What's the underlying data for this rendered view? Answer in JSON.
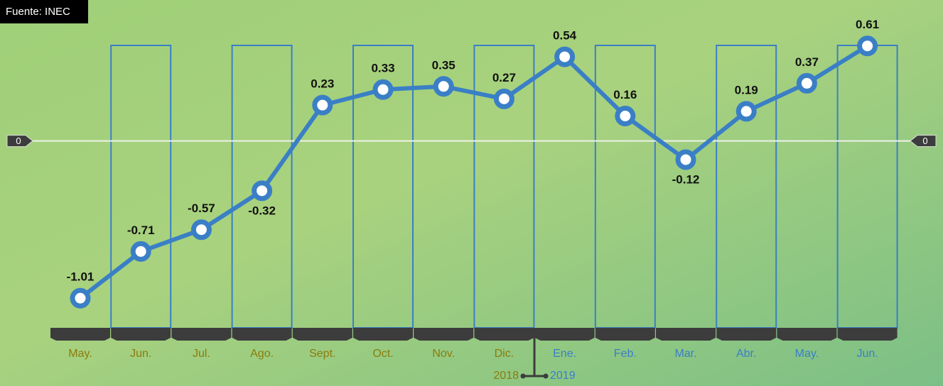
{
  "source": "Fuente: INEC",
  "chart_data": {
    "type": "line",
    "categories": [
      "May.",
      "Jun.",
      "Jul.",
      "Ago.",
      "Sept.",
      "Oct.",
      "Nov.",
      "Dic.",
      "Ene.",
      "Feb.",
      "Mar.",
      "Abr.",
      "May.",
      "Jun."
    ],
    "series": [
      {
        "color": "#3a7fc6",
        "values": [
          -1.01,
          -0.71,
          -0.57,
          -0.32,
          0.23,
          0.33,
          0.35,
          0.27,
          0.54,
          0.16,
          -0.12,
          0.19,
          0.37,
          0.61
        ]
      }
    ],
    "year_groups": [
      {
        "label": "2018",
        "color": "#8a7c0c",
        "span": 8
      },
      {
        "label": "2019",
        "color": "#3a7fc6",
        "span": 6
      }
    ],
    "ylim": [
      -1.1,
      0.7
    ],
    "yticks": [
      0
    ]
  }
}
